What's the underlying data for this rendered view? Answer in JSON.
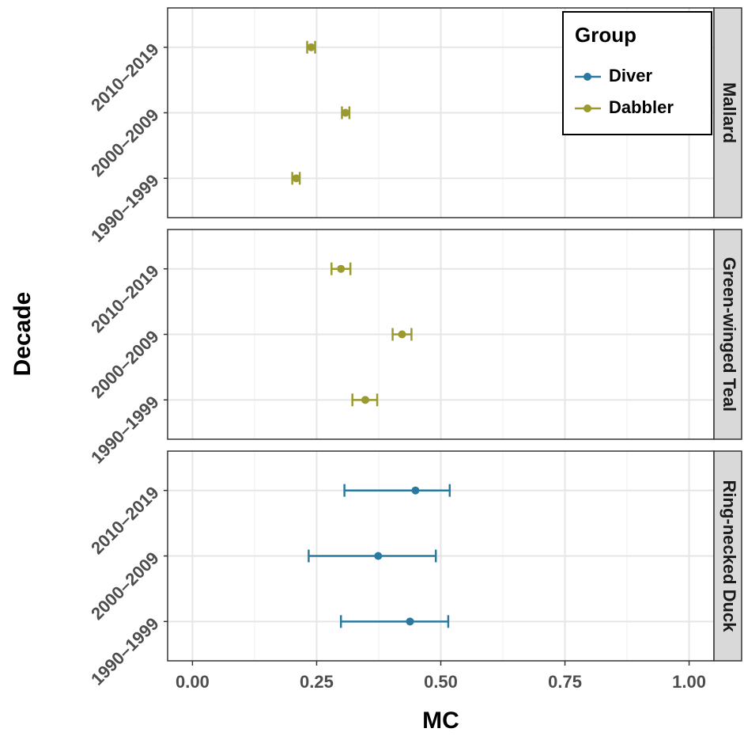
{
  "chart_data": [
    {
      "type": "errorbar",
      "facet": "Mallard",
      "categories": [
        "1990–1999",
        "2000–2009",
        "2010–2019"
      ],
      "series": [
        {
          "name": "Dabbler",
          "color": "#9a9a2e",
          "values": [
            0.209,
            0.308,
            0.239
          ],
          "lower": [
            0.201,
            0.301,
            0.231
          ],
          "upper": [
            0.216,
            0.316,
            0.247
          ]
        }
      ],
      "xlim": [
        -0.05,
        1.05
      ],
      "xticks": [
        0,
        0.25,
        0.5,
        0.75,
        1
      ],
      "grid": true,
      "legend": {
        "title": "Group",
        "position": "top-right"
      }
    },
    {
      "type": "errorbar",
      "facet": "Green-winged Teal",
      "ylabel": "Decade",
      "categories": [
        "1990–1999",
        "2000–2009",
        "2010–2019"
      ],
      "series": [
        {
          "name": "Dabbler",
          "color": "#9a9a2e",
          "values": [
            0.348,
            0.422,
            0.299
          ],
          "lower": [
            0.322,
            0.403,
            0.28
          ],
          "upper": [
            0.372,
            0.441,
            0.318
          ]
        }
      ],
      "xlim": [
        -0.05,
        1.05
      ],
      "xticks": [
        0,
        0.25,
        0.5,
        0.75,
        1
      ],
      "grid": true
    },
    {
      "type": "errorbar",
      "facet": "Ring-necked Duck",
      "xlabel": "MC",
      "categories": [
        "1990–1999",
        "2000–2009",
        "2010–2019"
      ],
      "series": [
        {
          "name": "Diver",
          "color": "#2a7aa0",
          "values": [
            0.438,
            0.374,
            0.449
          ],
          "lower": [
            0.299,
            0.234,
            0.306
          ],
          "upper": [
            0.515,
            0.49,
            0.518
          ]
        }
      ],
      "xlim": [
        -0.05,
        1.05
      ],
      "xticks": [
        {
          "value": 0,
          "label": "0.00"
        },
        {
          "value": 0.25,
          "label": "0.25"
        },
        {
          "value": 0.5,
          "label": "0.50"
        },
        {
          "value": 0.75,
          "label": "0.75"
        },
        {
          "value": 1,
          "label": "1.00"
        }
      ],
      "grid": true
    }
  ]
}
